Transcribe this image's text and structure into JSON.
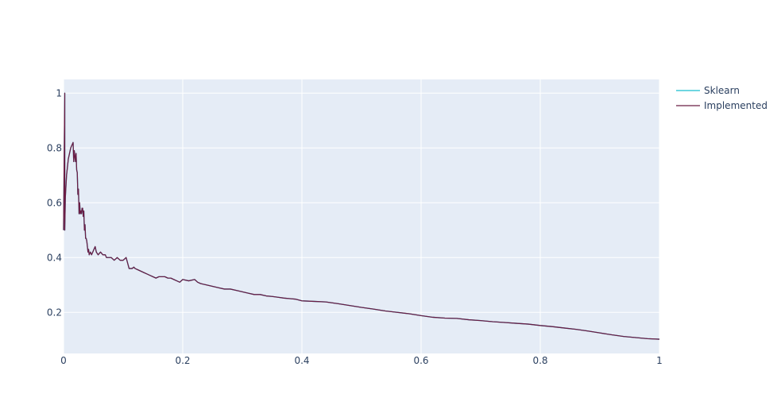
{
  "chart_data": {
    "type": "line",
    "title": "",
    "xlabel": "",
    "ylabel": "",
    "xlim": [
      0,
      1
    ],
    "ylim": [
      0.05,
      1.05
    ],
    "grid": true,
    "legend_placement": "top-right",
    "plot_background": "#e5ecf6",
    "x_ticks": [
      0,
      0.2,
      0.4,
      0.6,
      0.8,
      1
    ],
    "x_tick_labels": [
      "0",
      "0.2",
      "0.4",
      "0.6",
      "0.8",
      "1"
    ],
    "y_ticks": [
      0.2,
      0.4,
      0.6,
      0.8,
      1
    ],
    "y_tick_labels": [
      "0.2",
      "0.4",
      "0.6",
      "0.8",
      "1"
    ],
    "series": [
      {
        "name": "Sklearn",
        "color": "#17becf",
        "x": [
          0,
          0.002,
          0.002,
          0.003,
          0.005,
          0.008,
          0.012,
          0.016,
          0.017,
          0.018,
          0.019,
          0.02,
          0.021,
          0.022,
          0.023,
          0.024,
          0.025,
          0.026,
          0.027,
          0.028,
          0.029,
          0.03,
          0.031,
          0.032,
          0.033,
          0.034,
          0.035,
          0.036,
          0.037,
          0.038,
          0.039,
          0.04,
          0.041,
          0.042,
          0.043,
          0.045,
          0.047,
          0.049,
          0.051,
          0.053,
          0.055,
          0.058,
          0.062,
          0.066,
          0.07,
          0.072,
          0.075,
          0.08,
          0.085,
          0.09,
          0.095,
          0.1,
          0.105,
          0.11,
          0.115,
          0.118,
          0.12,
          0.125,
          0.13,
          0.135,
          0.14,
          0.145,
          0.15,
          0.155,
          0.16,
          0.165,
          0.17,
          0.175,
          0.18,
          0.185,
          0.19,
          0.195,
          0.2,
          0.21,
          0.22,
          0.225,
          0.23,
          0.24,
          0.25,
          0.26,
          0.27,
          0.28,
          0.29,
          0.3,
          0.31,
          0.32,
          0.33,
          0.34,
          0.35,
          0.36,
          0.37,
          0.38,
          0.39,
          0.4,
          0.42,
          0.44,
          0.46,
          0.48,
          0.5,
          0.52,
          0.54,
          0.56,
          0.58,
          0.6,
          0.62,
          0.64,
          0.66,
          0.68,
          0.7,
          0.72,
          0.74,
          0.76,
          0.78,
          0.8,
          0.82,
          0.84,
          0.86,
          0.88,
          0.9,
          0.92,
          0.94,
          0.96,
          0.98,
          1.0
        ],
        "y": [
          0.5,
          1.0,
          0.5,
          0.62,
          0.7,
          0.76,
          0.8,
          0.82,
          0.75,
          0.79,
          0.77,
          0.75,
          0.78,
          0.72,
          0.71,
          0.63,
          0.65,
          0.56,
          0.6,
          0.56,
          0.57,
          0.56,
          0.58,
          0.58,
          0.55,
          0.57,
          0.5,
          0.52,
          0.47,
          0.47,
          0.46,
          0.44,
          0.42,
          0.43,
          0.41,
          0.42,
          0.41,
          0.42,
          0.43,
          0.44,
          0.42,
          0.41,
          0.42,
          0.41,
          0.41,
          0.4,
          0.4,
          0.4,
          0.39,
          0.4,
          0.39,
          0.39,
          0.4,
          0.36,
          0.36,
          0.365,
          0.36,
          0.355,
          0.35,
          0.345,
          0.34,
          0.335,
          0.33,
          0.325,
          0.33,
          0.33,
          0.33,
          0.325,
          0.325,
          0.32,
          0.315,
          0.31,
          0.32,
          0.315,
          0.32,
          0.31,
          0.305,
          0.3,
          0.295,
          0.29,
          0.285,
          0.285,
          0.28,
          0.275,
          0.27,
          0.265,
          0.265,
          0.26,
          0.258,
          0.255,
          0.252,
          0.25,
          0.248,
          0.242,
          0.24,
          0.238,
          0.232,
          0.225,
          0.218,
          0.212,
          0.205,
          0.2,
          0.195,
          0.188,
          0.182,
          0.179,
          0.178,
          0.173,
          0.17,
          0.166,
          0.163,
          0.16,
          0.157,
          0.152,
          0.148,
          0.143,
          0.138,
          0.132,
          0.125,
          0.118,
          0.112,
          0.108,
          0.104,
          0.102
        ]
      },
      {
        "name": "Implemented",
        "color": "#6b1d45",
        "x": [
          0,
          0.002,
          0.002,
          0.003,
          0.005,
          0.008,
          0.012,
          0.016,
          0.017,
          0.018,
          0.019,
          0.02,
          0.021,
          0.022,
          0.023,
          0.024,
          0.025,
          0.026,
          0.027,
          0.028,
          0.029,
          0.03,
          0.031,
          0.032,
          0.033,
          0.034,
          0.035,
          0.036,
          0.037,
          0.038,
          0.039,
          0.04,
          0.041,
          0.042,
          0.043,
          0.045,
          0.047,
          0.049,
          0.051,
          0.053,
          0.055,
          0.058,
          0.062,
          0.066,
          0.07,
          0.072,
          0.075,
          0.08,
          0.085,
          0.09,
          0.095,
          0.1,
          0.105,
          0.11,
          0.115,
          0.118,
          0.12,
          0.125,
          0.13,
          0.135,
          0.14,
          0.145,
          0.15,
          0.155,
          0.16,
          0.165,
          0.17,
          0.175,
          0.18,
          0.185,
          0.19,
          0.195,
          0.2,
          0.21,
          0.22,
          0.225,
          0.23,
          0.24,
          0.25,
          0.26,
          0.27,
          0.28,
          0.29,
          0.3,
          0.31,
          0.32,
          0.33,
          0.34,
          0.35,
          0.36,
          0.37,
          0.38,
          0.39,
          0.4,
          0.42,
          0.44,
          0.46,
          0.48,
          0.5,
          0.52,
          0.54,
          0.56,
          0.58,
          0.6,
          0.62,
          0.64,
          0.66,
          0.68,
          0.7,
          0.72,
          0.74,
          0.76,
          0.78,
          0.8,
          0.82,
          0.84,
          0.86,
          0.88,
          0.9,
          0.92,
          0.94,
          0.96,
          0.98,
          1.0
        ],
        "y": [
          0.5,
          1.0,
          0.5,
          0.62,
          0.7,
          0.76,
          0.8,
          0.82,
          0.75,
          0.79,
          0.77,
          0.75,
          0.78,
          0.72,
          0.71,
          0.63,
          0.65,
          0.56,
          0.6,
          0.56,
          0.57,
          0.56,
          0.58,
          0.58,
          0.55,
          0.57,
          0.5,
          0.52,
          0.47,
          0.47,
          0.46,
          0.44,
          0.42,
          0.43,
          0.41,
          0.42,
          0.41,
          0.42,
          0.43,
          0.44,
          0.42,
          0.41,
          0.42,
          0.41,
          0.41,
          0.4,
          0.4,
          0.4,
          0.39,
          0.4,
          0.39,
          0.39,
          0.4,
          0.36,
          0.36,
          0.365,
          0.36,
          0.355,
          0.35,
          0.345,
          0.34,
          0.335,
          0.33,
          0.325,
          0.33,
          0.33,
          0.33,
          0.325,
          0.325,
          0.32,
          0.315,
          0.31,
          0.32,
          0.315,
          0.32,
          0.31,
          0.305,
          0.3,
          0.295,
          0.29,
          0.285,
          0.285,
          0.28,
          0.275,
          0.27,
          0.265,
          0.265,
          0.26,
          0.258,
          0.255,
          0.252,
          0.25,
          0.248,
          0.242,
          0.24,
          0.238,
          0.232,
          0.225,
          0.218,
          0.212,
          0.205,
          0.2,
          0.195,
          0.188,
          0.182,
          0.179,
          0.178,
          0.173,
          0.17,
          0.166,
          0.163,
          0.16,
          0.157,
          0.152,
          0.148,
          0.143,
          0.138,
          0.132,
          0.125,
          0.118,
          0.112,
          0.108,
          0.104,
          0.102
        ]
      }
    ]
  }
}
